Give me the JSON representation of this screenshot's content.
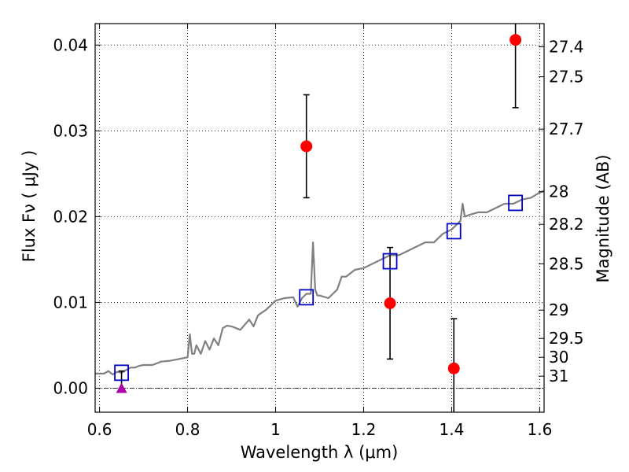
{
  "chart_data": {
    "type": "scatter",
    "xlabel": "Wavelength  λ (μm)",
    "ylabel": "Flux  Fν  ( μJy )",
    "y2label": "Magnitude (AB)",
    "xlim": [
      0.59,
      1.61
    ],
    "ylim": [
      -0.0028,
      0.0425
    ],
    "grid": true,
    "x_ticks": [
      0.6,
      0.8,
      1.0,
      1.2,
      1.4,
      1.6
    ],
    "x_tick_labels": [
      "0.6",
      "0.8",
      "1",
      "1.2",
      "1.4",
      "1.6"
    ],
    "y_ticks": [
      0.0,
      0.01,
      0.02,
      0.03,
      0.04
    ],
    "y_tick_labels": [
      "0.00",
      "0.01",
      "0.02",
      "0.03",
      "0.04"
    ],
    "magnitude_ticks": [
      {
        "label": "27.4",
        "flux": 0.0398
      },
      {
        "label": "27.5",
        "flux": 0.0363
      },
      {
        "label": "27.7",
        "flux": 0.0302
      },
      {
        "label": "28",
        "flux": 0.0229
      },
      {
        "label": "28.2",
        "flux": 0.0191
      },
      {
        "label": "28.5",
        "flux": 0.0145
      },
      {
        "label": "29",
        "flux": 0.0091
      },
      {
        "label": "29.5",
        "flux": 0.0058
      },
      {
        "label": "30",
        "flux": 0.0036
      },
      {
        "label": "31",
        "flux": 0.0014
      }
    ],
    "zero_line": 0.0,
    "series": [
      {
        "kind": "line",
        "color": "#808080",
        "x": [
          0.59,
          0.61,
          0.62,
          0.63,
          0.64,
          0.65,
          0.66,
          0.67,
          0.68,
          0.69,
          0.7,
          0.72,
          0.74,
          0.76,
          0.78,
          0.8,
          0.805,
          0.81,
          0.815,
          0.82,
          0.83,
          0.84,
          0.85,
          0.86,
          0.87,
          0.88,
          0.89,
          0.9,
          0.92,
          0.94,
          0.95,
          0.96,
          0.98,
          1.0,
          1.02,
          1.04,
          1.05,
          1.06,
          1.07,
          1.08,
          1.085,
          1.09,
          1.095,
          1.1,
          1.12,
          1.14,
          1.15,
          1.16,
          1.18,
          1.2,
          1.22,
          1.24,
          1.26,
          1.28,
          1.3,
          1.32,
          1.34,
          1.36,
          1.38,
          1.4,
          1.41,
          1.42,
          1.425,
          1.43,
          1.44,
          1.46,
          1.48,
          1.5,
          1.52,
          1.54,
          1.56,
          1.58,
          1.6,
          1.61
        ],
        "y": [
          0.0017,
          0.0017,
          0.002,
          0.0016,
          0.0019,
          0.0018,
          0.0021,
          0.0024,
          0.0024,
          0.0026,
          0.0027,
          0.0027,
          0.0031,
          0.0032,
          0.0034,
          0.0036,
          0.0063,
          0.004,
          0.004,
          0.005,
          0.004,
          0.0055,
          0.0045,
          0.0058,
          0.005,
          0.007,
          0.0073,
          0.0072,
          0.0068,
          0.008,
          0.0072,
          0.0085,
          0.0092,
          0.0102,
          0.0105,
          0.0106,
          0.0095,
          0.0105,
          0.011,
          0.011,
          0.017,
          0.0115,
          0.0108,
          0.0108,
          0.0105,
          0.0115,
          0.013,
          0.013,
          0.0138,
          0.014,
          0.0145,
          0.015,
          0.0155,
          0.0155,
          0.016,
          0.0165,
          0.017,
          0.017,
          0.018,
          0.0185,
          0.019,
          0.0195,
          0.0215,
          0.02,
          0.0202,
          0.0205,
          0.0205,
          0.021,
          0.0215,
          0.0215,
          0.022,
          0.0222,
          0.0228,
          0.023
        ]
      },
      {
        "kind": "open-square",
        "color": "#0000cc",
        "x": [
          0.65,
          1.07,
          1.26,
          1.405,
          1.545
        ],
        "y": [
          0.0018,
          0.0106,
          0.0148,
          0.0183,
          0.0216
        ]
      },
      {
        "kind": "errorbar-dot",
        "color": "#ff0000",
        "x": [
          1.07,
          1.26,
          1.405,
          1.545
        ],
        "y": [
          0.0282,
          0.0099,
          0.0023,
          0.0406
        ],
        "yerr": [
          0.006,
          0.0065,
          0.0058,
          0.0079
        ]
      },
      {
        "kind": "triangle",
        "color": "#aa00aa",
        "x": [
          0.65
        ],
        "y": [
          0.0
        ],
        "yerr_high": [
          0.002
        ]
      }
    ]
  }
}
